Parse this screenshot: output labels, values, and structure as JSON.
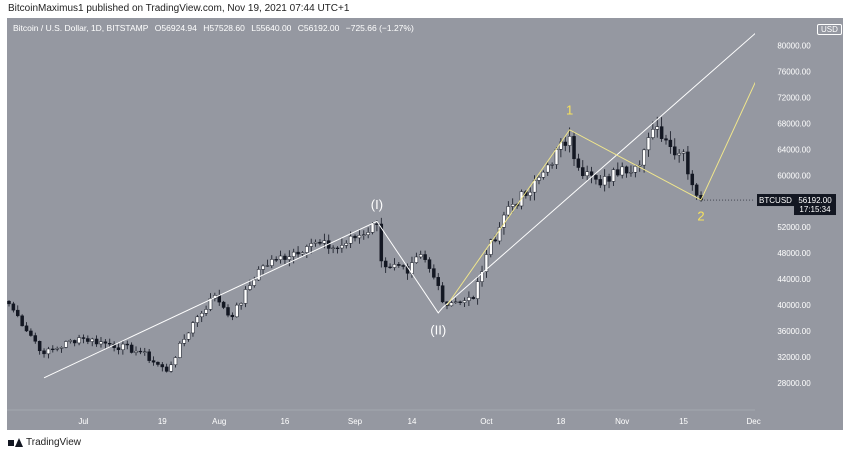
{
  "header": {
    "publisher_text": "BitcoinMaximus1 published on TradingView.com, Nov 19, 2021 07:44 UTC+1"
  },
  "legend": {
    "symbol_text": "Bitcoin / U.S. Dollar, 1D, BITSTAMP",
    "open_label": "O",
    "open": "56924.94",
    "high_label": "H",
    "high": "57528.60",
    "low_label": "L",
    "low": "55640.00",
    "close_label": "C",
    "close": "56192.00",
    "change": "−725.66 (−1.27%)"
  },
  "currency_badge": "USD",
  "price_tag": {
    "ticker": "BTCUSD",
    "price": "56192.00",
    "countdown": "17:15:34"
  },
  "footer": {
    "brand": "TradingView"
  },
  "colors": {
    "background": "#9598a1",
    "up_candle": "#ffffff",
    "down_candle": "#131722",
    "wave_white": "#ffffff",
    "wave_yellow": "#f0e68c",
    "label_yellow": "#f7e25c"
  },
  "chart_data": {
    "type": "candlestick",
    "title": "Bitcoin / U.S. Dollar, 1D, BITSTAMP",
    "ylim": [
      24000,
      84000
    ],
    "y_ticks": [
      "28000.00",
      "32000.00",
      "36000.00",
      "40000.00",
      "44000.00",
      "48000.00",
      "52000.00",
      "56000.00",
      "60000.00",
      "64000.00",
      "68000.00",
      "72000.00",
      "76000.00",
      "80000.00"
    ],
    "x_ticks": [
      {
        "label": "Jul",
        "date": "2021-07-01"
      },
      {
        "label": "19",
        "date": "2021-07-19"
      },
      {
        "label": "Aug",
        "date": "2021-08-01"
      },
      {
        "label": "16",
        "date": "2021-08-16"
      },
      {
        "label": "Sep",
        "date": "2021-09-01"
      },
      {
        "label": "14",
        "date": "2021-09-14"
      },
      {
        "label": "Oct",
        "date": "2021-10-01"
      },
      {
        "label": "18",
        "date": "2021-10-18"
      },
      {
        "label": "Nov",
        "date": "2021-11-01"
      },
      {
        "label": "15",
        "date": "2021-11-15"
      },
      {
        "label": "Dec",
        "date": "2021-12-01"
      }
    ],
    "price_keypoints": [
      {
        "date": "2021-06-14",
        "close": 40200
      },
      {
        "date": "2021-06-22",
        "close": 32500
      },
      {
        "date": "2021-06-30",
        "close": 35000
      },
      {
        "date": "2021-07-07",
        "close": 34000
      },
      {
        "date": "2021-07-14",
        "close": 32800
      },
      {
        "date": "2021-07-20",
        "close": 29800
      },
      {
        "date": "2021-07-26",
        "close": 37300
      },
      {
        "date": "2021-07-31",
        "close": 41500
      },
      {
        "date": "2021-08-04",
        "close": 38200
      },
      {
        "date": "2021-08-10",
        "close": 45500
      },
      {
        "date": "2021-08-14",
        "close": 47000
      },
      {
        "date": "2021-08-22",
        "close": 49500
      },
      {
        "date": "2021-08-28",
        "close": 48800
      },
      {
        "date": "2021-09-06",
        "close": 52500
      },
      {
        "date": "2021-09-07",
        "close": 46800
      },
      {
        "date": "2021-09-13",
        "close": 44900
      },
      {
        "date": "2021-09-16",
        "close": 47800
      },
      {
        "date": "2021-09-20",
        "close": 43000
      },
      {
        "date": "2021-09-21",
        "close": 40500
      },
      {
        "date": "2021-09-28",
        "close": 41000
      },
      {
        "date": "2021-10-01",
        "close": 47800
      },
      {
        "date": "2021-10-06",
        "close": 55200
      },
      {
        "date": "2021-10-11",
        "close": 57400
      },
      {
        "date": "2021-10-15",
        "close": 61600
      },
      {
        "date": "2021-10-20",
        "close": 66000
      },
      {
        "date": "2021-10-22",
        "close": 61200
      },
      {
        "date": "2021-10-27",
        "close": 58500
      },
      {
        "date": "2021-11-01",
        "close": 61300
      },
      {
        "date": "2021-11-04",
        "close": 61400
      },
      {
        "date": "2021-11-09",
        "close": 67500
      },
      {
        "date": "2021-11-12",
        "close": 64400
      },
      {
        "date": "2021-11-15",
        "close": 63600
      },
      {
        "date": "2021-11-16",
        "close": 60200
      },
      {
        "date": "2021-11-18",
        "close": 56900
      },
      {
        "date": "2021-11-19",
        "close": 56192
      }
    ],
    "last_price": 56192.0,
    "annotations": [
      {
        "name": "white-wave",
        "color": "#ffffff",
        "points": [
          {
            "date": "2021-06-22",
            "price": 28800
          },
          {
            "date": "2021-09-06",
            "price": 52900
          },
          {
            "date": "2021-09-20",
            "price": 38800
          },
          {
            "date": "2021-09-21",
            "price": 39600
          }
        ],
        "labels": [
          {
            "text": "(I)",
            "date": "2021-09-06",
            "price": 54800
          },
          {
            "text": "(II)",
            "date": "2021-09-20",
            "price": 35500
          }
        ]
      },
      {
        "name": "white-channel-line",
        "color": "#ffffff",
        "points": [
          {
            "date": "2021-09-21",
            "price": 39600
          },
          {
            "date": "2021-12-05",
            "price": 84000
          }
        ]
      },
      {
        "name": "yellow-wave",
        "color": "#f0e68c",
        "points": [
          {
            "date": "2021-09-22",
            "price": 40000
          },
          {
            "date": "2021-10-20",
            "price": 67000
          },
          {
            "date": "2021-11-19",
            "price": 56200
          },
          {
            "date": "2021-12-08",
            "price": 84000
          }
        ],
        "labels": [
          {
            "text": "1",
            "date": "2021-10-20",
            "price": 69400
          },
          {
            "text": "2",
            "date": "2021-11-19",
            "price": 53000
          }
        ]
      }
    ]
  }
}
